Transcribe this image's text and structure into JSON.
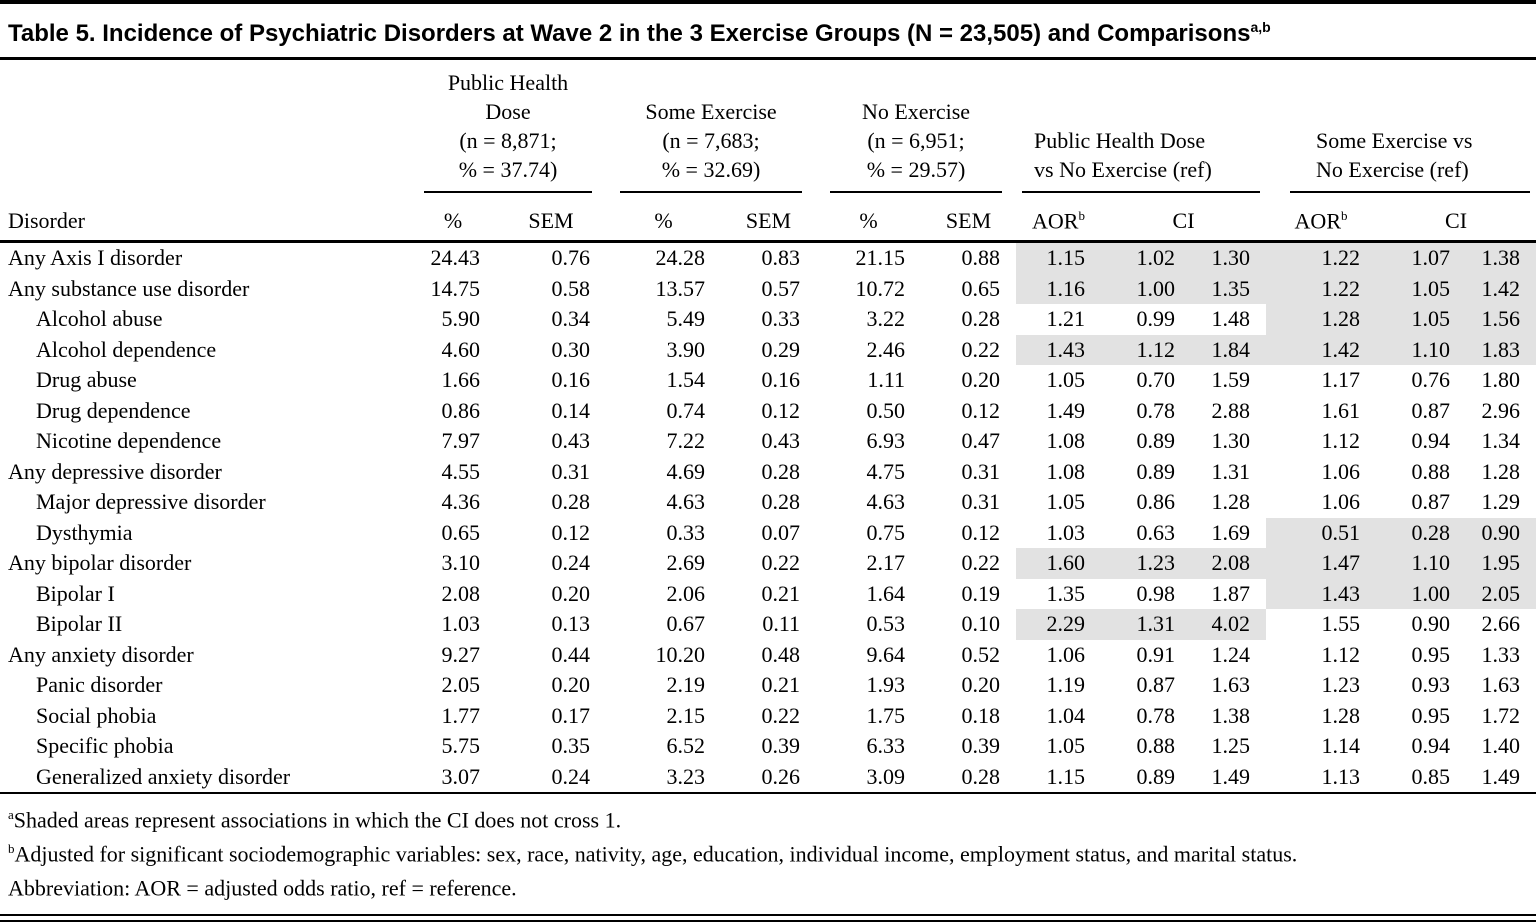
{
  "page": {
    "title": "Table 5. Incidence of Psychiatric Disorders at Wave 2 in the 3 Exercise Groups (N = 23,505) and Comparisons",
    "title_superscript": "a,b"
  },
  "table": {
    "shade_color": "#e2e2e2",
    "groups": [
      {
        "lines": [
          "Public Health Dose",
          "(n = 8,871;",
          "% = 37.74)"
        ]
      },
      {
        "lines": [
          "Some Exercise",
          "(n = 7,683;",
          "% = 32.69)"
        ]
      },
      {
        "lines": [
          "No Exercise",
          "(n = 6,951;",
          "% = 29.57)"
        ]
      },
      {
        "lines": [
          "Public Health Dose",
          "vs No Exercise (ref)"
        ]
      },
      {
        "lines": [
          "Some Exercise vs",
          "No Exercise (ref)"
        ]
      }
    ],
    "subheaders": {
      "disorder": "Disorder",
      "pct": "%",
      "sem": "SEM",
      "aor": "AOR",
      "aor_sup": "b",
      "ci": "CI"
    },
    "rows": [
      {
        "label": "Any Axis I disorder",
        "indent": false,
        "values": [
          "24.43",
          "0.76",
          "24.28",
          "0.83",
          "21.15",
          "0.88",
          "1.15",
          "1.02",
          "1.30",
          "1.22",
          "1.07",
          "1.38"
        ],
        "shade_phd": true,
        "shade_some": true
      },
      {
        "label": "Any substance use disorder",
        "indent": false,
        "values": [
          "14.75",
          "0.58",
          "13.57",
          "0.57",
          "10.72",
          "0.65",
          "1.16",
          "1.00",
          "1.35",
          "1.22",
          "1.05",
          "1.42"
        ],
        "shade_phd": true,
        "shade_some": true
      },
      {
        "label": "Alcohol abuse",
        "indent": true,
        "values": [
          "5.90",
          "0.34",
          "5.49",
          "0.33",
          "3.22",
          "0.28",
          "1.21",
          "0.99",
          "1.48",
          "1.28",
          "1.05",
          "1.56"
        ],
        "shade_phd": false,
        "shade_some": true
      },
      {
        "label": "Alcohol dependence",
        "indent": true,
        "values": [
          "4.60",
          "0.30",
          "3.90",
          "0.29",
          "2.46",
          "0.22",
          "1.43",
          "1.12",
          "1.84",
          "1.42",
          "1.10",
          "1.83"
        ],
        "shade_phd": true,
        "shade_some": true
      },
      {
        "label": "Drug abuse",
        "indent": true,
        "values": [
          "1.66",
          "0.16",
          "1.54",
          "0.16",
          "1.11",
          "0.20",
          "1.05",
          "0.70",
          "1.59",
          "1.17",
          "0.76",
          "1.80"
        ],
        "shade_phd": false,
        "shade_some": false
      },
      {
        "label": "Drug dependence",
        "indent": true,
        "values": [
          "0.86",
          "0.14",
          "0.74",
          "0.12",
          "0.50",
          "0.12",
          "1.49",
          "0.78",
          "2.88",
          "1.61",
          "0.87",
          "2.96"
        ],
        "shade_phd": false,
        "shade_some": false
      },
      {
        "label": "Nicotine dependence",
        "indent": true,
        "values": [
          "7.97",
          "0.43",
          "7.22",
          "0.43",
          "6.93",
          "0.47",
          "1.08",
          "0.89",
          "1.30",
          "1.12",
          "0.94",
          "1.34"
        ],
        "shade_phd": false,
        "shade_some": false
      },
      {
        "label": "Any depressive disorder",
        "indent": false,
        "values": [
          "4.55",
          "0.31",
          "4.69",
          "0.28",
          "4.75",
          "0.31",
          "1.08",
          "0.89",
          "1.31",
          "1.06",
          "0.88",
          "1.28"
        ],
        "shade_phd": false,
        "shade_some": false
      },
      {
        "label": "Major depressive disorder",
        "indent": true,
        "values": [
          "4.36",
          "0.28",
          "4.63",
          "0.28",
          "4.63",
          "0.31",
          "1.05",
          "0.86",
          "1.28",
          "1.06",
          "0.87",
          "1.29"
        ],
        "shade_phd": false,
        "shade_some": false
      },
      {
        "label": "Dysthymia",
        "indent": true,
        "values": [
          "0.65",
          "0.12",
          "0.33",
          "0.07",
          "0.75",
          "0.12",
          "1.03",
          "0.63",
          "1.69",
          "0.51",
          "0.28",
          "0.90"
        ],
        "shade_phd": false,
        "shade_some": true
      },
      {
        "label": "Any bipolar disorder",
        "indent": false,
        "values": [
          "3.10",
          "0.24",
          "2.69",
          "0.22",
          "2.17",
          "0.22",
          "1.60",
          "1.23",
          "2.08",
          "1.47",
          "1.10",
          "1.95"
        ],
        "shade_phd": true,
        "shade_some": true
      },
      {
        "label": "Bipolar I",
        "indent": true,
        "values": [
          "2.08",
          "0.20",
          "2.06",
          "0.21",
          "1.64",
          "0.19",
          "1.35",
          "0.98",
          "1.87",
          "1.43",
          "1.00",
          "2.05"
        ],
        "shade_phd": false,
        "shade_some": true
      },
      {
        "label": "Bipolar II",
        "indent": true,
        "values": [
          "1.03",
          "0.13",
          "0.67",
          "0.11",
          "0.53",
          "0.10",
          "2.29",
          "1.31",
          "4.02",
          "1.55",
          "0.90",
          "2.66"
        ],
        "shade_phd": true,
        "shade_some": false
      },
      {
        "label": "Any anxiety disorder",
        "indent": false,
        "values": [
          "9.27",
          "0.44",
          "10.20",
          "0.48",
          "9.64",
          "0.52",
          "1.06",
          "0.91",
          "1.24",
          "1.12",
          "0.95",
          "1.33"
        ],
        "shade_phd": false,
        "shade_some": false
      },
      {
        "label": "Panic disorder",
        "indent": true,
        "values": [
          "2.05",
          "0.20",
          "2.19",
          "0.21",
          "1.93",
          "0.20",
          "1.19",
          "0.87",
          "1.63",
          "1.23",
          "0.93",
          "1.63"
        ],
        "shade_phd": false,
        "shade_some": false
      },
      {
        "label": "Social phobia",
        "indent": true,
        "values": [
          "1.77",
          "0.17",
          "2.15",
          "0.22",
          "1.75",
          "0.18",
          "1.04",
          "0.78",
          "1.38",
          "1.28",
          "0.95",
          "1.72"
        ],
        "shade_phd": false,
        "shade_some": false
      },
      {
        "label": "Specific phobia",
        "indent": true,
        "values": [
          "5.75",
          "0.35",
          "6.52",
          "0.39",
          "6.33",
          "0.39",
          "1.05",
          "0.88",
          "1.25",
          "1.14",
          "0.94",
          "1.40"
        ],
        "shade_phd": false,
        "shade_some": false
      },
      {
        "label": "Generalized anxiety disorder",
        "indent": true,
        "values": [
          "3.07",
          "0.24",
          "3.23",
          "0.26",
          "3.09",
          "0.28",
          "1.15",
          "0.89",
          "1.49",
          "1.13",
          "0.85",
          "1.49"
        ],
        "shade_phd": false,
        "shade_some": false
      }
    ],
    "footnotes": [
      {
        "marker": "a",
        "text": "Shaded areas represent associations in which the CI does not cross 1."
      },
      {
        "marker": "b",
        "text": "Adjusted for significant sociodemographic variables: sex, race, nativity, age, education, individual income, employment status, and marital status."
      },
      {
        "marker": "",
        "text": "Abbreviation: AOR = adjusted odds ratio, ref = reference."
      }
    ]
  }
}
